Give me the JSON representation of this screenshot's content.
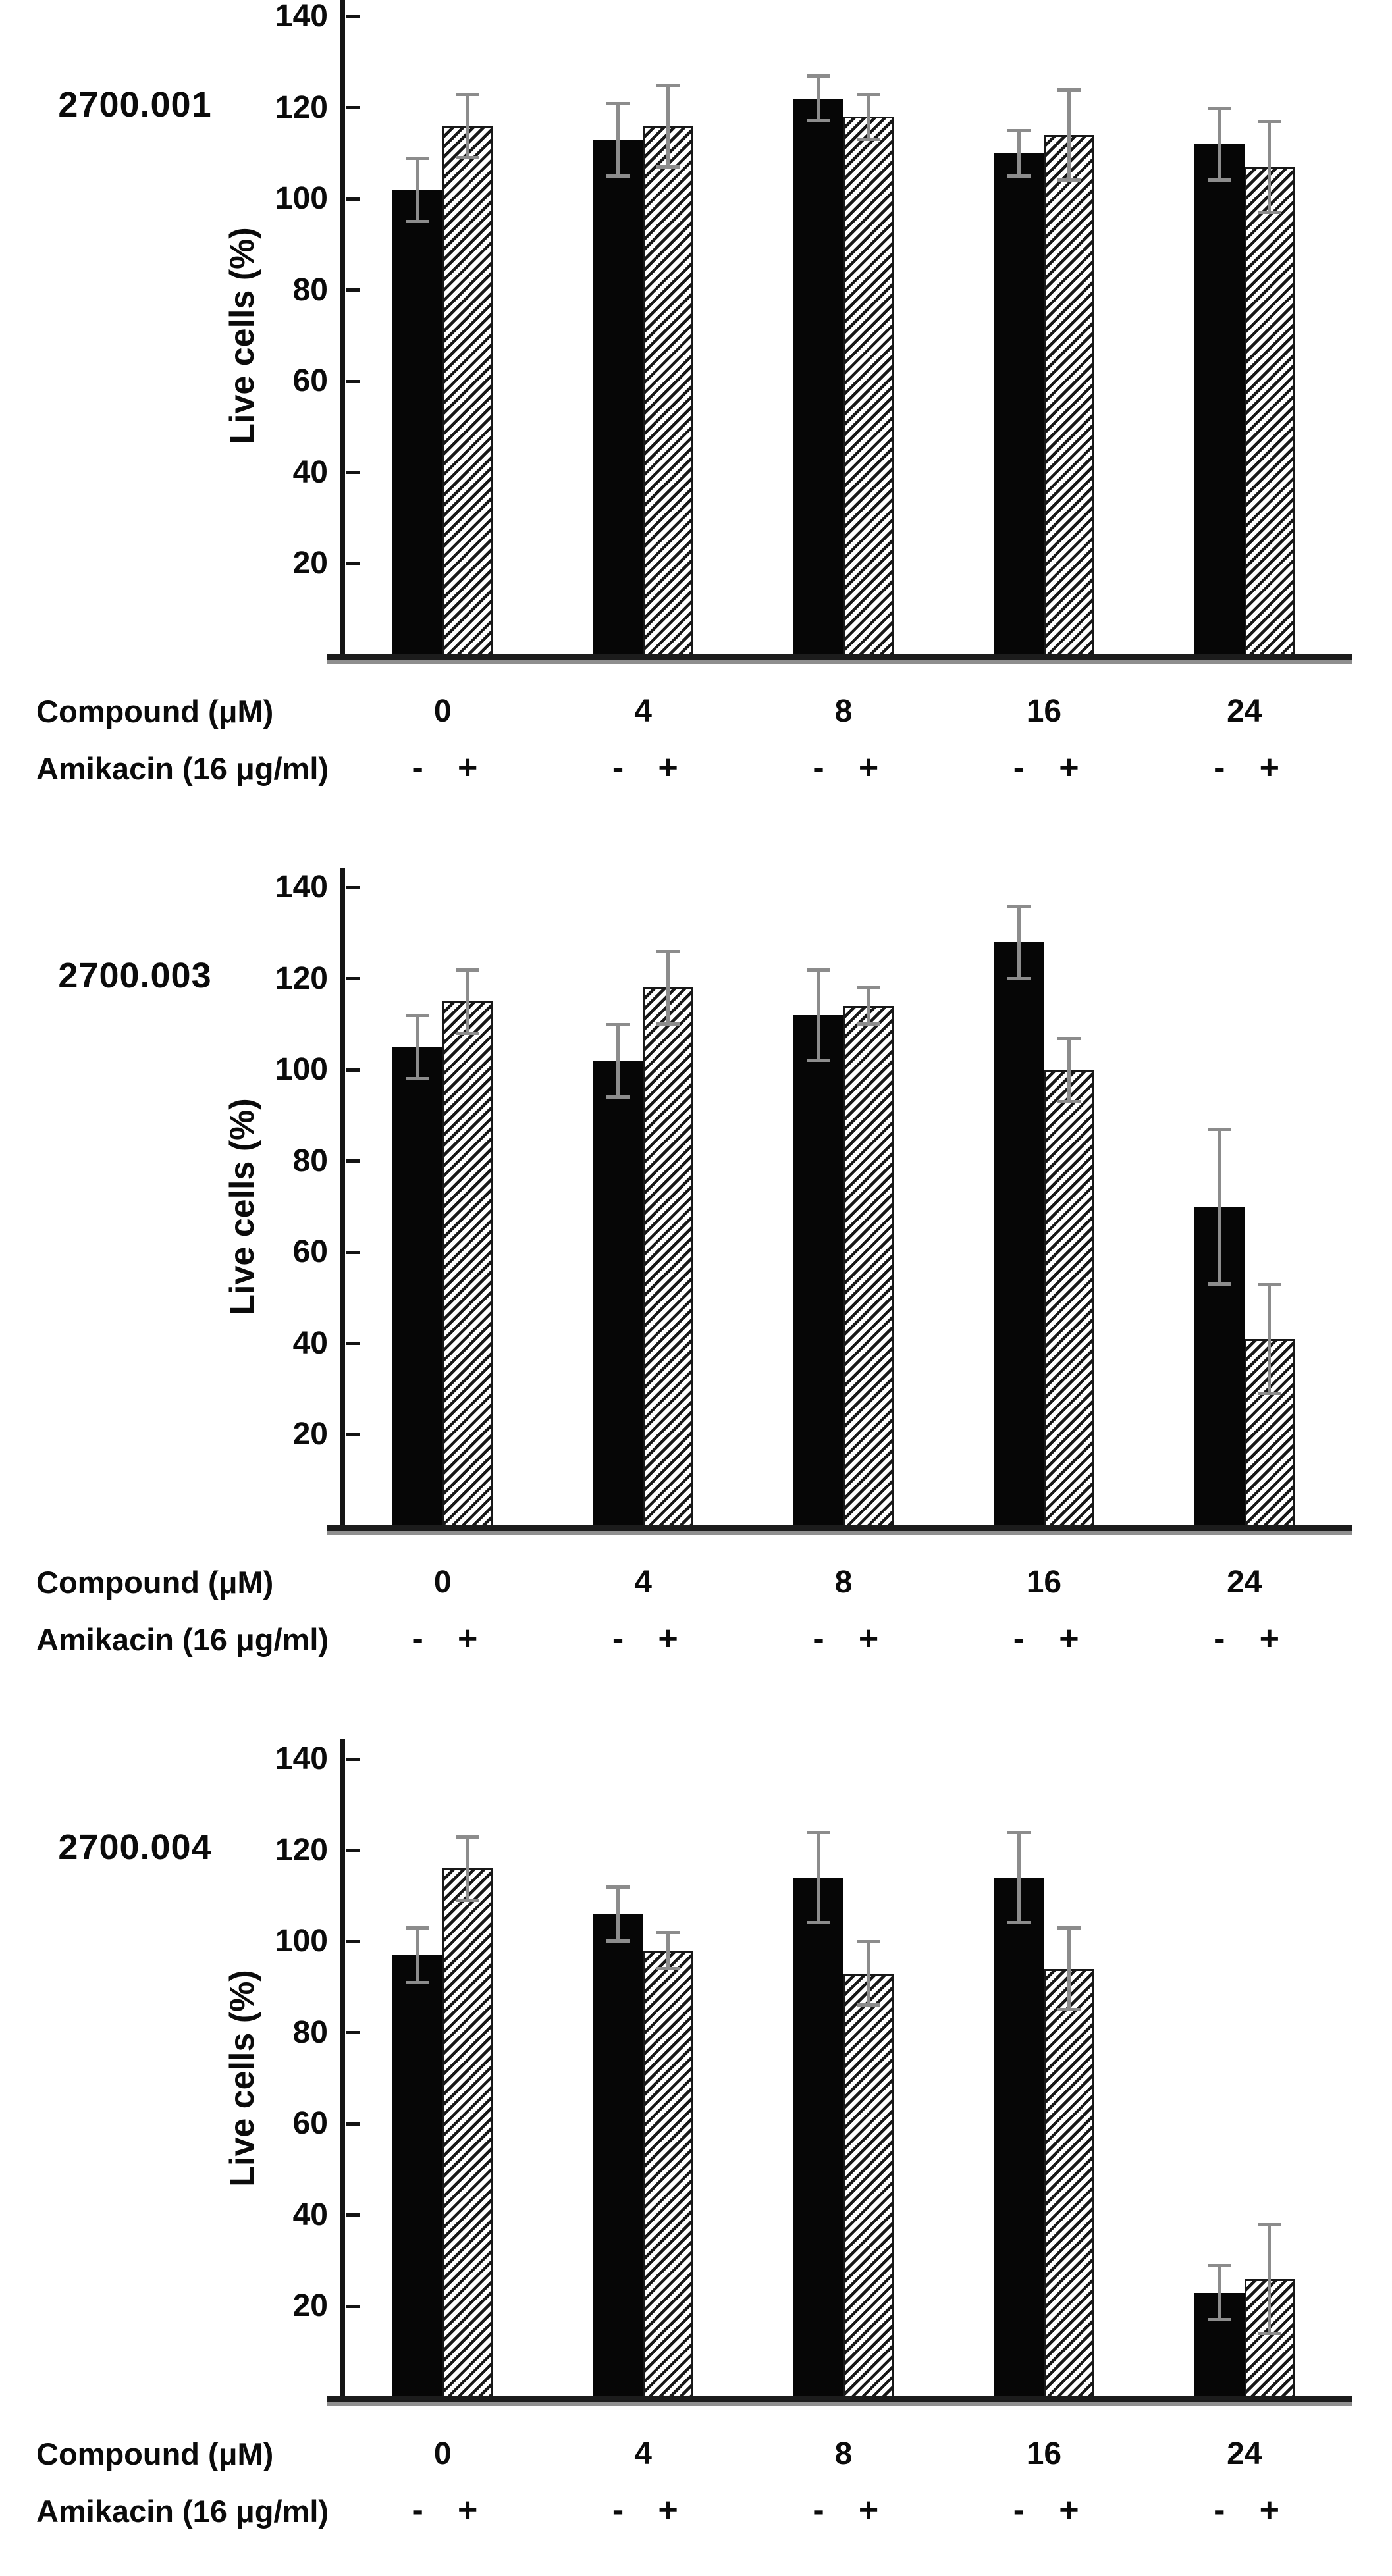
{
  "figure": {
    "background": "#ffffff",
    "text_color": "#0b0b0b",
    "bar_solid_color": "#060606",
    "hatch_stripe_color": "#181818",
    "error_bar_color": "#8c8c8c",
    "axis_color": "#141414",
    "baseline_shadow_color": "#8f8f8f"
  },
  "chart_data": [
    {
      "type": "bar",
      "panel_label": "2700.001",
      "title": "2700.001",
      "ylabel": "Live cells (%)",
      "xlabel": "Compound (μM)",
      "amikacin_label": "Amikacin (16 μg/ml)",
      "ylim": [
        0,
        140
      ],
      "yticks": [
        20,
        40,
        60,
        80,
        100,
        120,
        140
      ],
      "grid": false,
      "legend_position": "none",
      "categories": [
        "0",
        "4",
        "8",
        "16",
        "24"
      ],
      "amikacin_signs": [
        "-",
        "+"
      ],
      "series": [
        {
          "name": "Amikacin -",
          "pattern": "solid-black",
          "values": [
            102,
            113,
            122,
            110,
            112
          ],
          "errors": [
            7,
            8,
            5,
            5,
            8
          ]
        },
        {
          "name": "Amikacin +",
          "pattern": "hatched",
          "values": [
            116,
            116,
            118,
            114,
            107
          ],
          "errors": [
            7,
            9,
            5,
            10,
            10
          ]
        }
      ]
    },
    {
      "type": "bar",
      "panel_label": "2700.003",
      "title": "2700.003",
      "ylabel": "Live cells (%)",
      "xlabel": "Compound (μM)",
      "amikacin_label": "Amikacin (16 μg/ml)",
      "ylim": [
        0,
        140
      ],
      "yticks": [
        20,
        40,
        60,
        80,
        100,
        120,
        140
      ],
      "grid": false,
      "legend_position": "none",
      "categories": [
        "0",
        "4",
        "8",
        "16",
        "24"
      ],
      "amikacin_signs": [
        "-",
        "+"
      ],
      "series": [
        {
          "name": "Amikacin -",
          "pattern": "solid-black",
          "values": [
            105,
            102,
            112,
            128,
            70
          ],
          "errors": [
            7,
            8,
            10,
            8,
            17
          ]
        },
        {
          "name": "Amikacin +",
          "pattern": "hatched",
          "values": [
            115,
            118,
            114,
            100,
            41
          ],
          "errors": [
            7,
            8,
            4,
            7,
            12
          ]
        }
      ]
    },
    {
      "type": "bar",
      "panel_label": "2700.004",
      "title": "2700.004",
      "ylabel": "Live cells (%)",
      "xlabel": "Compound (μM)",
      "amikacin_label": "Amikacin (16 μg/ml)",
      "ylim": [
        0,
        140
      ],
      "yticks": [
        20,
        40,
        60,
        80,
        100,
        120,
        140
      ],
      "grid": false,
      "legend_position": "none",
      "categories": [
        "0",
        "4",
        "8",
        "16",
        "24"
      ],
      "amikacin_signs": [
        "-",
        "+"
      ],
      "series": [
        {
          "name": "Amikacin -",
          "pattern": "solid-black",
          "values": [
            97,
            106,
            114,
            114,
            23
          ],
          "errors": [
            6,
            6,
            10,
            10,
            6
          ]
        },
        {
          "name": "Amikacin +",
          "pattern": "hatched",
          "values": [
            116,
            98,
            93,
            94,
            26
          ],
          "errors": [
            7,
            4,
            7,
            9,
            12
          ]
        }
      ]
    }
  ]
}
